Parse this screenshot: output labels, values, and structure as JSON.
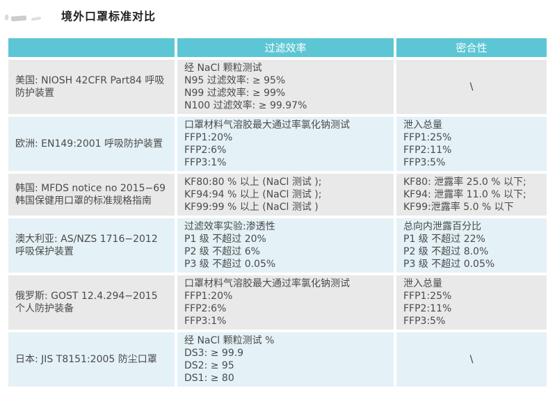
{
  "page": {
    "title": "境外口罩标准对比"
  },
  "table": {
    "headers": [
      "",
      "过滤效率",
      "密合性"
    ],
    "na_symbol": "\\",
    "rows": [
      {
        "standard": "美国: NIOSH 42CFR Part84 呼吸防护装置",
        "filtration": [
          "经 NaCl 颗粒测试",
          "N95 过滤效率: ≥ 95%",
          "N99 过滤效率: ≥ 99%",
          "N100 过滤效率: ≥ 99.97%"
        ],
        "fit": [
          "\\"
        ],
        "fit_na": true
      },
      {
        "standard": "欧洲: EN149:2001 呼吸防护装置",
        "filtration": [
          "口罩材料气溶胶最大通过率氯化钠测试",
          "FFP1:20%",
          "FFP2:6%",
          "FFP3:1%"
        ],
        "fit": [
          "泄入总量",
          "FFP1:25%",
          "FFP2:11%",
          "FFP3:5%"
        ],
        "fit_na": false
      },
      {
        "standard": "韩国: MFDS notice no 2015−69 韩国保健用口罩的标准规格指南",
        "filtration": [
          "KF80:80 % 以上 (NaCl 测试 );",
          "KF94:94 % 以上 (NaCl 测试 );",
          "KF99:99 % 以上 (NaCl 测试 )"
        ],
        "fit": [
          "KF80: 泄露率 25.0 % 以下;",
          "KF94: 泄露率 11.0 % 以下;",
          "KF99:泄露率 5.0 % 以下"
        ],
        "fit_na": false
      },
      {
        "standard": "澳大利亚: AS/NZS 1716−2012 呼吸保护装置",
        "filtration": [
          "过滤效率实验:渗透性",
          "P1 级 不超过 20%",
          "P2 级 不超过 6%",
          "P3 级 不超过 0.05%"
        ],
        "fit": [
          "总向内泄露百分比",
          "P1 级 不超过 22%",
          "P2 级 不超过 8.0%",
          "P3 级 不超过 0.05%"
        ],
        "fit_na": false
      },
      {
        "standard": "俄罗斯: GOST 12.4.294−2015 个人防护装备",
        "filtration": [
          "口罩材料气溶胶最大通过率氯化钠测试",
          "FFP1:20%",
          "FFP2:6%",
          "FFP3:1%"
        ],
        "fit": [
          "泄入总量",
          "FFP1:25%",
          "FFP2:11%",
          "FFP3:5%"
        ],
        "fit_na": false
      },
      {
        "standard": "日本: JIS T8151:2005 防尘口罩",
        "filtration": [
          "经 NaCl 颗粒测试 %",
          "DS3: ≥ 99.9",
          "DS2: ≥ 95",
          "DS1: ≥ 80"
        ],
        "fit": [
          "\\"
        ],
        "fit_na": true
      }
    ]
  },
  "colors": {
    "header_bg": "#5cc6d4",
    "row_gray": "#e9e9e9",
    "row_blue": "#e4f1f6",
    "header_text": "#ffffff",
    "body_text": "#4a4a4a"
  }
}
